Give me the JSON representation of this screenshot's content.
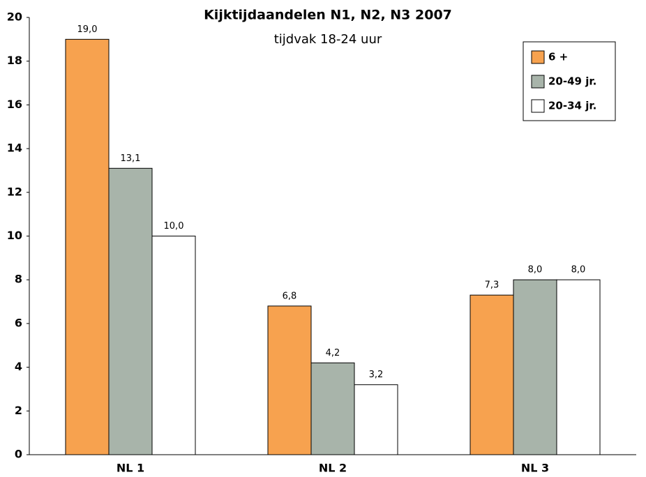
{
  "chart_data": {
    "type": "bar",
    "title": "Kijktijdaandelen N1, N2, N3 2007",
    "subtitle": "tijdvak 18-24 uur",
    "categories": [
      "NL 1",
      "NL 2",
      "NL 3"
    ],
    "series": [
      {
        "name": "6 +",
        "color": "#f7a24f",
        "values": [
          19.0,
          6.8,
          7.3
        ],
        "value_labels": [
          "19,0",
          "6,8",
          "7,3"
        ]
      },
      {
        "name": "20-49 jr.",
        "color": "#a8b4aa",
        "values": [
          13.1,
          4.2,
          8.0
        ],
        "value_labels": [
          "13,1",
          "4,2",
          "8,0"
        ]
      },
      {
        "name": "20-34 jr.",
        "color": "#ffffff",
        "values": [
          10.0,
          3.2,
          8.0
        ],
        "value_labels": [
          "10,0",
          "3,2",
          "8,0"
        ]
      }
    ],
    "ylim": [
      0,
      20
    ],
    "yticks": [
      0,
      2,
      4,
      6,
      8,
      10,
      12,
      14,
      16,
      18,
      20
    ],
    "legend": "upper right"
  }
}
